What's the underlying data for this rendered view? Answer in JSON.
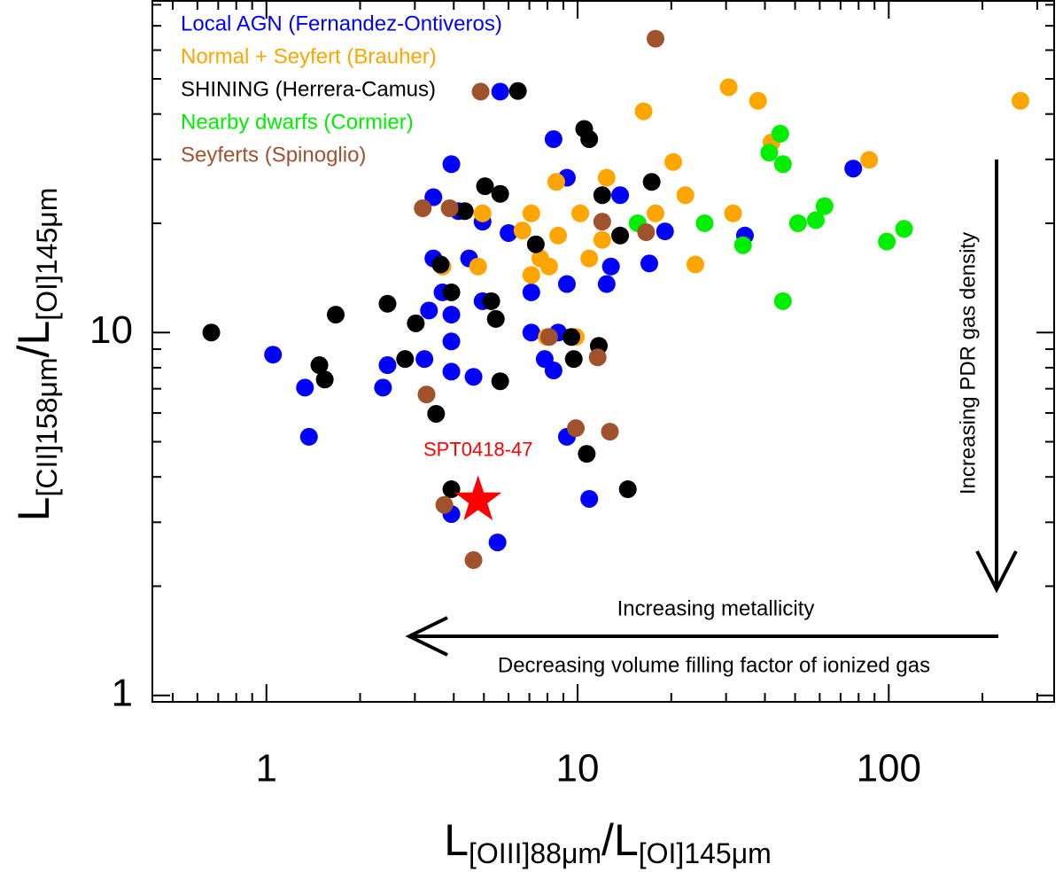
{
  "chart_data": {
    "type": "scatter",
    "xlabel": [
      {
        "text": "L"
      },
      {
        "text": "[OIII]88μm",
        "sub": true
      },
      {
        "text": "/L"
      },
      {
        "text": "[OI]145μm",
        "sub": true
      }
    ],
    "ylabel": [
      {
        "text": "L"
      },
      {
        "text": "[CII]158μm",
        "sub": true
      },
      {
        "text": "/L"
      },
      {
        "text": "[OI]145μm",
        "sub": true
      }
    ],
    "xscale": "log",
    "yscale": "log",
    "xlim": [
      0.43,
      340
    ],
    "ylim": [
      0.96,
      82
    ],
    "xticks": [
      1,
      10,
      100
    ],
    "yticks": [
      1,
      10
    ],
    "xminorticks": [
      0.5,
      0.6,
      0.7,
      0.8,
      0.9,
      2,
      3,
      4,
      5,
      6,
      7,
      8,
      9,
      20,
      30,
      40,
      50,
      60,
      70,
      80,
      90,
      200,
      300
    ],
    "yminorticks": [
      2,
      3,
      4,
      5,
      6,
      7,
      8,
      9,
      20,
      30,
      40,
      50,
      60,
      70,
      80
    ],
    "legend": "upper left",
    "series": [
      {
        "name": "Local AGN (Fernandez-Ontiveros)",
        "color": "#0000ff",
        "x": [
          5.64,
          3.93,
          3.44,
          4.14,
          4.95,
          8.37,
          9.24,
          13.7,
          19.1,
          34.5,
          76.9,
          17,
          3.44,
          4.48,
          3.68,
          3.33,
          4.95,
          7.1,
          9.24,
          12.4,
          3.93,
          7.1,
          8.66,
          3.93,
          1.05,
          1.33,
          2.37,
          2.45,
          3.22,
          3.93,
          4.63,
          7.84,
          8.37,
          9.24,
          1.37,
          10.9,
          3.93,
          5.53,
          6,
          12.8
        ],
        "values": [
          46.1,
          29.1,
          23.6,
          21.6,
          20.2,
          34.1,
          26.7,
          23.9,
          19,
          18.5,
          28.3,
          15.5,
          16,
          16,
          12.9,
          11.5,
          12.2,
          12.9,
          13.6,
          13.6,
          11.2,
          10,
          10,
          9.45,
          8.69,
          7.05,
          7.05,
          8.13,
          8.45,
          7.8,
          7.55,
          8.45,
          7.86,
          5.16,
          5.16,
          3.48,
          3.16,
          2.64,
          18.8,
          15.2
        ]
      },
      {
        "name": "Normal + Seyfert (Brauher)",
        "color": "#ffa500",
        "x": [
          16.3,
          30.6,
          38,
          265,
          20.3,
          86.5,
          8.54,
          12.4,
          22.2,
          10.2,
          7.1,
          4.95,
          6.65,
          8.66,
          12,
          17.8,
          31.6,
          23.9,
          7.59,
          8.1,
          10.9,
          4.79,
          3.68,
          7.1,
          9.87,
          7.96,
          42
        ],
        "values": [
          40.7,
          47.4,
          43.5,
          43.5,
          29.5,
          29.9,
          26,
          26.7,
          23.9,
          21.3,
          21.3,
          21.3,
          19.1,
          18.5,
          18,
          21.3,
          21.3,
          15.4,
          16,
          15.2,
          16,
          15.2,
          15.2,
          14.4,
          9.72,
          9.72,
          33.4
        ]
      },
      {
        "name": "SHINING (Herrera-Camus)",
        "color": "#000000",
        "x": [
          0.665,
          1.67,
          2.45,
          2.79,
          1.48,
          1.54,
          3.02,
          3.51,
          3.63,
          3.93,
          5.04,
          5.64,
          4.34,
          10.5,
          10.9,
          7.34,
          17.3,
          13.7,
          6.43,
          9.55,
          11.7,
          5.46,
          5.64,
          3.93,
          10.7,
          14.5,
          9.72,
          5.28,
          12
        ],
        "values": [
          10,
          11.2,
          12,
          8.45,
          8.13,
          7.42,
          10.6,
          5.97,
          15.4,
          12.9,
          25.3,
          24.1,
          21.6,
          36.4,
          34.1,
          17.5,
          26,
          18.5,
          46.3,
          9.72,
          9.19,
          10.9,
          7.34,
          3.7,
          4.63,
          3.7,
          8.45,
          12.2,
          23.9
        ]
      },
      {
        "name": "Nearby dwarfs (Cormier)",
        "color": "#00ee00",
        "x": [
          44.8,
          41.3,
          45.7,
          25.6,
          34,
          51.1,
          58.3,
          62.2,
          98.6,
          112,
          45.7,
          15.6
        ],
        "values": [
          35.3,
          31.3,
          29.1,
          20,
          17.4,
          20,
          20.4,
          22.3,
          17.8,
          19.3,
          12.2,
          20
        ]
      },
      {
        "name": "Seyferts (Spinoglio)",
        "color": "#a0522d",
        "x": [
          17.8,
          4.88,
          3.18,
          3.88,
          12,
          16.6,
          9.87,
          12.7,
          3.73,
          4.63,
          11.6,
          3.27,
          8.1
        ],
        "values": [
          64.5,
          46.1,
          22,
          22,
          20.2,
          18.9,
          5.45,
          5.33,
          3.35,
          2.36,
          8.54,
          6.75,
          9.72
        ]
      }
    ],
    "highlight": {
      "name": "SPT0418-47",
      "x": 4.79,
      "y": 3.45,
      "color": "#ff0000"
    },
    "annotations": [
      "Increasing PDR gas density",
      "Increasing metallicity",
      "Decreasing volume filling factor of ionized gas"
    ]
  }
}
